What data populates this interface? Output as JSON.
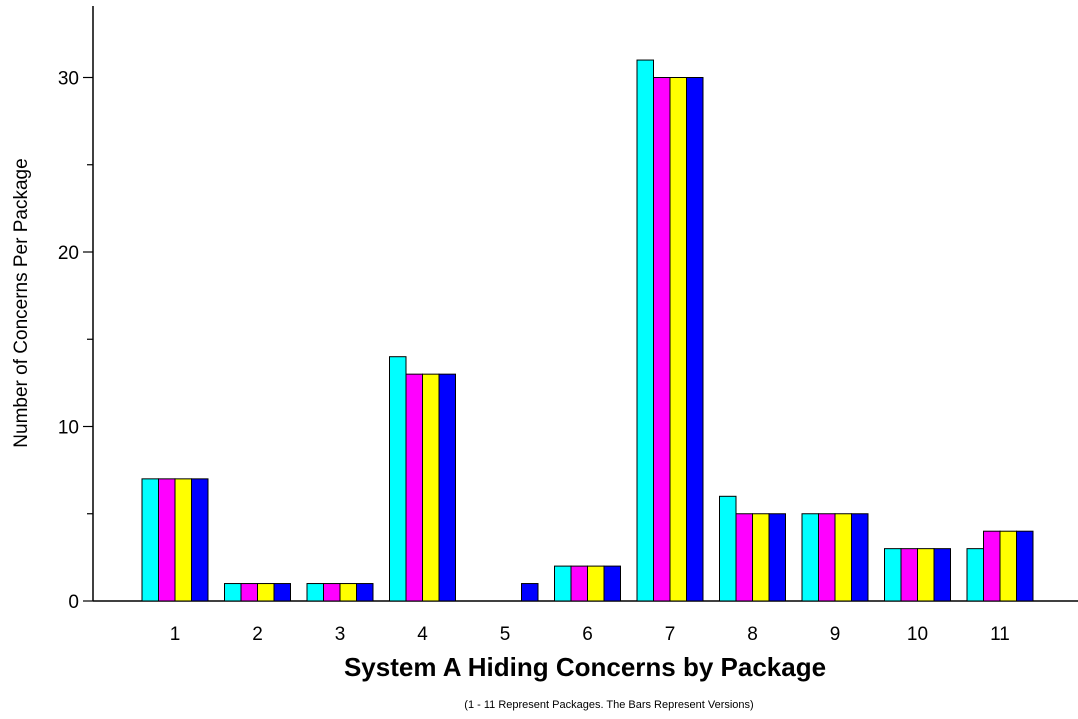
{
  "chart_data": {
    "type": "bar",
    "title": "System A Hiding Concerns by Package",
    "subtitle": "(1 - 11 Represent Packages.  The Bars Represent Versions)",
    "xlabel": "",
    "ylabel": "Number of Concerns Per Package",
    "ylim": [
      0,
      34
    ],
    "yticks": [
      0,
      10,
      20,
      30
    ],
    "categories": [
      "1",
      "2",
      "3",
      "4",
      "5",
      "6",
      "7",
      "8",
      "9",
      "10",
      "11"
    ],
    "grid": false,
    "legend": "none",
    "series": [
      {
        "color": "#00ffff",
        "values": [
          7,
          1,
          1,
          14,
          0,
          2,
          31,
          6,
          5,
          3,
          3
        ]
      },
      {
        "color": "#ff00ff",
        "values": [
          7,
          1,
          1,
          13,
          0,
          2,
          30,
          5,
          5,
          3,
          4
        ]
      },
      {
        "color": "#ffff00",
        "values": [
          7,
          1,
          1,
          13,
          0,
          2,
          30,
          5,
          5,
          3,
          4
        ]
      },
      {
        "color": "#0000ff",
        "values": [
          7,
          1,
          1,
          13,
          1,
          2,
          30,
          5,
          5,
          3,
          4
        ]
      }
    ]
  }
}
